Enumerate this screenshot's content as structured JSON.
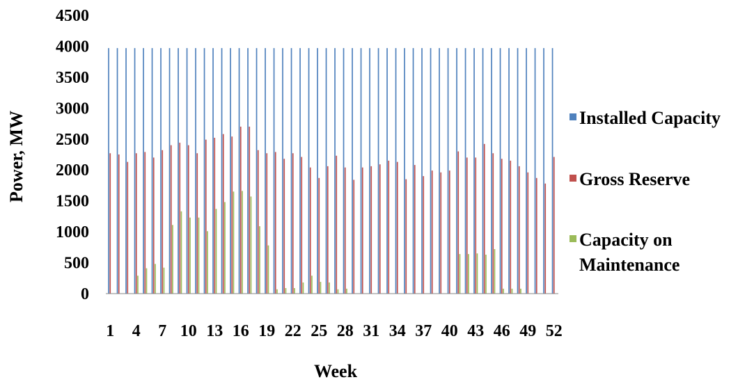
{
  "chart_data": {
    "type": "bar",
    "title": "",
    "xlabel": "Week",
    "ylabel": "Power, MW",
    "ylim": [
      0,
      4500
    ],
    "yticks": [
      0,
      500,
      1000,
      1500,
      2000,
      2500,
      3000,
      3500,
      4000,
      4500
    ],
    "categories": [
      1,
      2,
      3,
      4,
      5,
      6,
      7,
      8,
      9,
      10,
      11,
      12,
      13,
      14,
      15,
      16,
      17,
      18,
      19,
      20,
      21,
      22,
      23,
      24,
      25,
      26,
      27,
      28,
      29,
      30,
      31,
      32,
      33,
      34,
      35,
      36,
      37,
      38,
      39,
      40,
      41,
      42,
      43,
      44,
      45,
      46,
      47,
      48,
      49,
      50,
      51,
      52
    ],
    "xtick_labels": [
      "1",
      "4",
      "7",
      "10",
      "13",
      "16",
      "19",
      "22",
      "25",
      "28",
      "31",
      "34",
      "37",
      "40",
      "43",
      "46",
      "49",
      "52"
    ],
    "legend_position": "right",
    "grid": false,
    "series": [
      {
        "name": "Installed Capacity",
        "color": "#4F81BD",
        "values": [
          3970,
          3970,
          3970,
          3970,
          3970,
          3970,
          3970,
          3970,
          3970,
          3970,
          3970,
          3970,
          3970,
          3970,
          3970,
          3970,
          3970,
          3970,
          3970,
          3970,
          3970,
          3970,
          3970,
          3970,
          3970,
          3970,
          3970,
          3970,
          3970,
          3970,
          3970,
          3970,
          3970,
          3970,
          3970,
          3970,
          3970,
          3970,
          3970,
          3970,
          3970,
          3970,
          3970,
          3970,
          3970,
          3970,
          3970,
          3970,
          3970,
          3970,
          3970,
          3970
        ]
      },
      {
        "name": "Gross Reserve",
        "color": "#C0504D",
        "values": [
          2270,
          2250,
          2130,
          2270,
          2290,
          2200,
          2320,
          2400,
          2440,
          2400,
          2270,
          2490,
          2520,
          2580,
          2540,
          2700,
          2700,
          2320,
          2270,
          2290,
          2180,
          2270,
          2210,
          2040,
          1870,
          2060,
          2230,
          2040,
          1840,
          2040,
          2060,
          2090,
          2150,
          2130,
          1850,
          2080,
          1900,
          1990,
          1960,
          1990,
          2300,
          2200,
          2200,
          2420,
          2270,
          2180,
          2150,
          2060,
          1960,
          1870,
          1780,
          2210
        ]
      },
      {
        "name": "Capacity on Maintenance",
        "color": "#9BBB59",
        "values": [
          0,
          0,
          0,
          290,
          410,
          480,
          420,
          1110,
          1330,
          1230,
          1230,
          1010,
          1370,
          1480,
          1650,
          1660,
          1570,
          1090,
          780,
          70,
          90,
          90,
          180,
          290,
          190,
          180,
          70,
          80,
          0,
          0,
          0,
          0,
          0,
          0,
          0,
          0,
          0,
          0,
          0,
          0,
          640,
          640,
          650,
          630,
          720,
          80,
          80,
          80,
          0,
          0,
          0,
          0
        ]
      }
    ]
  }
}
